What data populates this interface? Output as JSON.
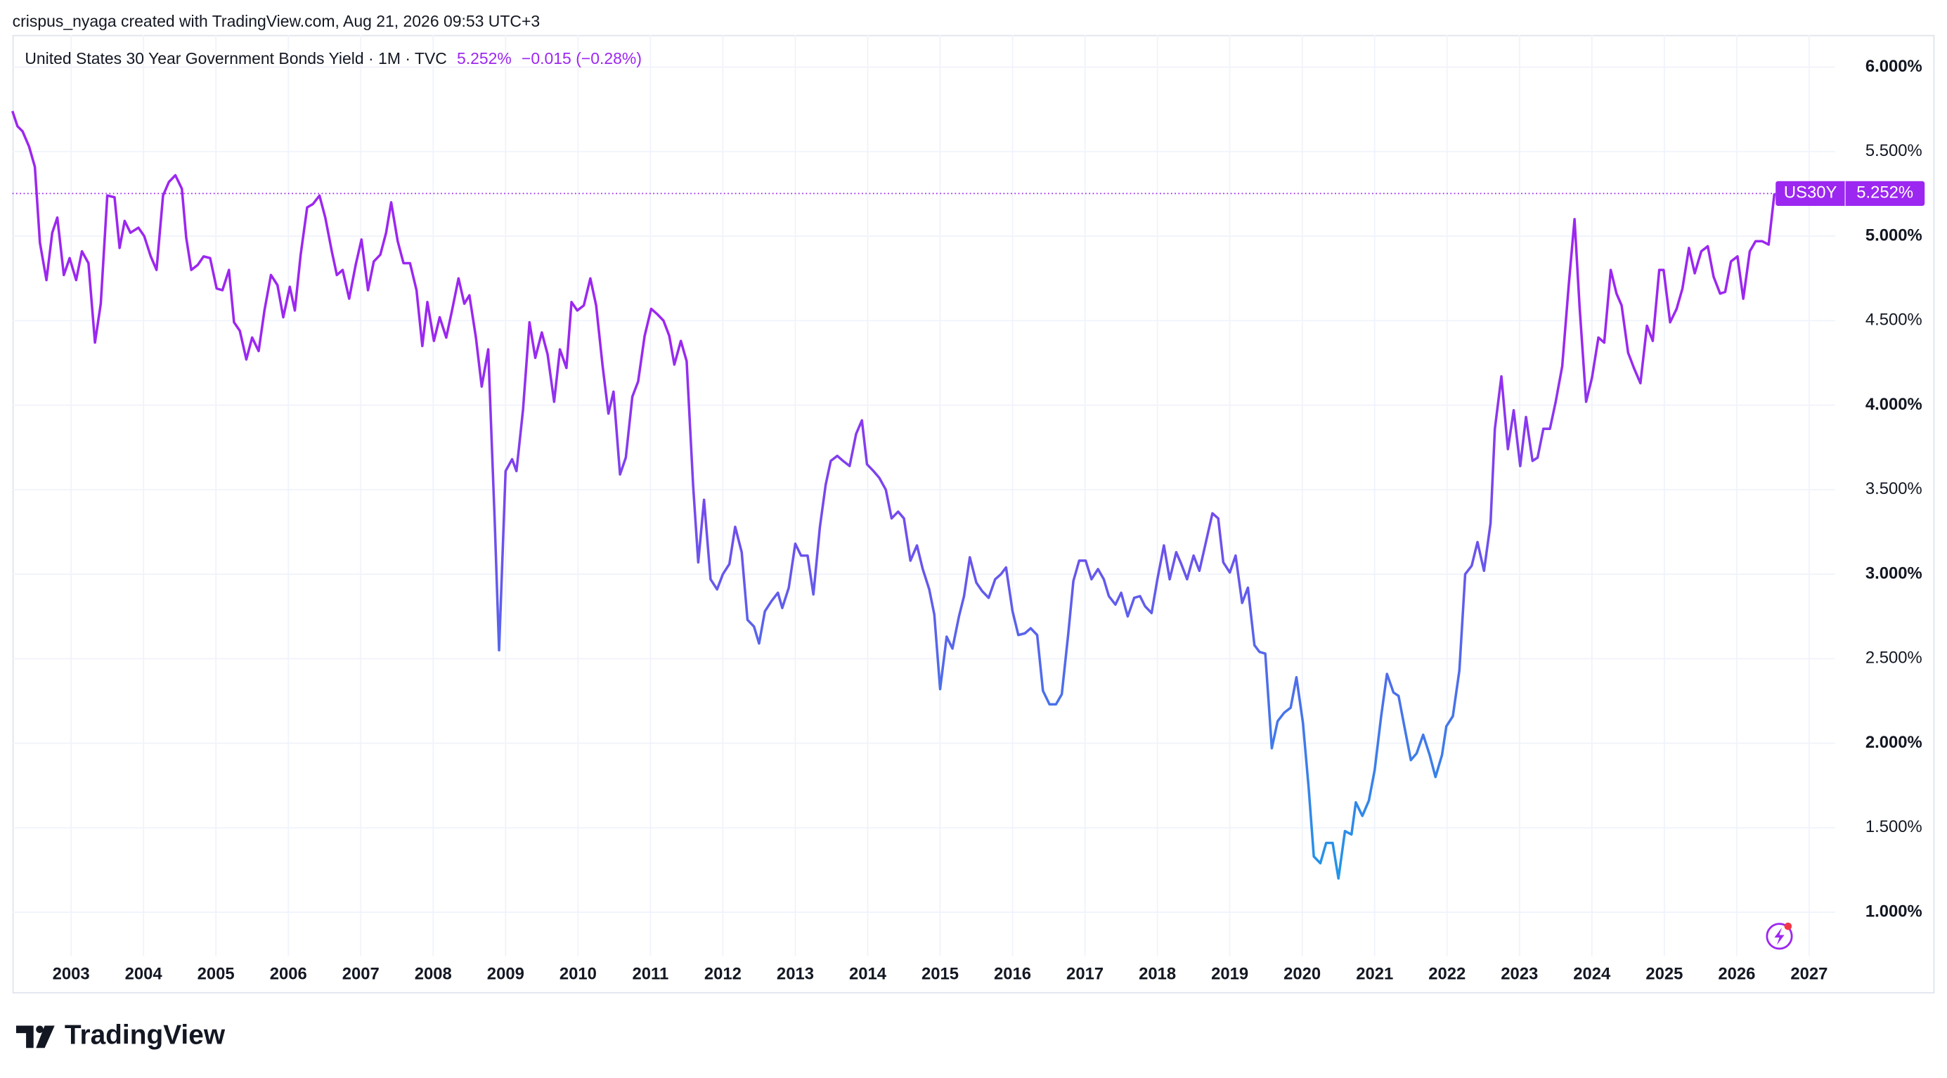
{
  "header": {
    "credit": "crispus_nyaga created with TradingView.com, Aug 21, 2026 09:53 UTC+3"
  },
  "footer": {
    "brand": "TradingView"
  },
  "chart_data": {
    "type": "line",
    "legend": {
      "name": "United States 30 Year Government Bonds Yield · 1M · TVC",
      "last": "5.252%",
      "change": "−0.015 (−0.28%)",
      "color": "#9c27f0"
    },
    "price_label": {
      "symbol": "US30Y",
      "value_label": "5.252%",
      "color": "#9c27f0"
    },
    "gradient": [
      "#9c27f0",
      "#2196e8"
    ],
    "grid": true,
    "xlim": [
      2002.19,
      2027.36
    ],
    "xticks": [
      2003,
      2004,
      2005,
      2006,
      2007,
      2008,
      2009,
      2010,
      2011,
      2012,
      2013,
      2014,
      2015,
      2016,
      2017,
      2018,
      2019,
      2020,
      2021,
      2022,
      2023,
      2024,
      2025,
      2026,
      2027
    ],
    "ylim": [
      0.52,
      6.19
    ],
    "yticks": [
      {
        "value": 1,
        "label": "1.000%"
      },
      {
        "value": 1.5,
        "label": "1.500%"
      },
      {
        "value": 2,
        "label": "2.000%"
      },
      {
        "value": 2.5,
        "label": "2.500%"
      },
      {
        "value": 3,
        "label": "3.000%"
      },
      {
        "value": 3.5,
        "label": "3.500%"
      },
      {
        "value": 4,
        "label": "4.000%"
      },
      {
        "value": 4.5,
        "label": "4.500%"
      },
      {
        "value": 5,
        "label": "5.000%"
      },
      {
        "value": 5.5,
        "label": "5.500%"
      },
      {
        "value": 6,
        "label": "6.000%"
      }
    ],
    "x": [
      2002.19,
      2002.26,
      2002.33,
      2002.42,
      2002.5,
      2002.57,
      2002.66,
      2002.74,
      2002.81,
      2002.9,
      2002.98,
      2003.07,
      2003.15,
      2003.24,
      2003.33,
      2003.41,
      2003.5,
      2003.6,
      2003.67,
      2003.74,
      2003.82,
      2003.93,
      2004.01,
      2004.1,
      2004.18,
      2004.27,
      2004.35,
      2004.44,
      2004.53,
      2004.59,
      2004.66,
      2004.75,
      2004.83,
      2004.92,
      2005.01,
      2005.09,
      2005.18,
      2005.25,
      2005.33,
      2005.42,
      2005.5,
      2005.59,
      2005.67,
      2005.76,
      2005.85,
      2005.93,
      2006.02,
      2006.09,
      2006.17,
      2006.26,
      2006.34,
      2006.43,
      2006.51,
      2006.6,
      2006.67,
      2006.75,
      2006.84,
      2006.93,
      2007.01,
      2007.1,
      2007.18,
      2007.27,
      2007.35,
      2007.42,
      2007.51,
      2007.59,
      2007.68,
      2007.77,
      2007.85,
      2007.92,
      2008.01,
      2008.09,
      2008.18,
      2008.26,
      2008.35,
      2008.43,
      2008.5,
      2008.59,
      2008.67,
      2008.76,
      2008.85,
      2008.91,
      2009.0,
      2009.09,
      2009.15,
      2009.24,
      2009.33,
      2009.41,
      2009.5,
      2009.58,
      2009.67,
      2009.75,
      2009.84,
      2009.91,
      2009.99,
      2010.08,
      2010.17,
      2010.25,
      2010.34,
      2010.42,
      2010.49,
      2010.58,
      2010.66,
      2010.75,
      2010.83,
      2010.92,
      2011.01,
      2011.09,
      2011.18,
      2011.26,
      2011.33,
      2011.42,
      2011.5,
      2011.59,
      2011.66,
      2011.74,
      2011.83,
      2011.92,
      2012.0,
      2012.09,
      2012.17,
      2012.26,
      2012.34,
      2012.43,
      2012.5,
      2012.58,
      2012.67,
      2012.76,
      2012.82,
      2012.91,
      2013.0,
      2013.08,
      2013.17,
      2013.25,
      2013.34,
      2013.42,
      2013.49,
      2013.58,
      2013.66,
      2013.75,
      2013.84,
      2013.92,
      2013.99,
      2014.08,
      2014.16,
      2014.25,
      2014.33,
      2014.42,
      2014.5,
      2014.59,
      2014.68,
      2014.76,
      2014.85,
      2014.92,
      2015.0,
      2015.09,
      2015.17,
      2015.26,
      2015.33,
      2015.41,
      2015.5,
      2015.58,
      2015.67,
      2015.76,
      2015.84,
      2015.91,
      2016.0,
      2016.08,
      2016.17,
      2016.25,
      2016.34,
      2016.42,
      2016.51,
      2016.6,
      2016.68,
      2016.77,
      2016.84,
      2016.92,
      2017.01,
      2017.09,
      2017.18,
      2017.26,
      2017.33,
      2017.42,
      2017.5,
      2017.59,
      2017.68,
      2017.76,
      2017.83,
      2017.92,
      2018.0,
      2018.09,
      2018.17,
      2018.26,
      2018.33,
      2018.41,
      2018.5,
      2018.58,
      2018.67,
      2018.76,
      2018.84,
      2018.91,
      2019.0,
      2019.08,
      2019.17,
      2019.25,
      2019.34,
      2019.41,
      2019.49,
      2019.58,
      2019.66,
      2019.75,
      2019.84,
      2019.92,
      2020.01,
      2020.09,
      2020.16,
      2020.25,
      2020.33,
      2020.42,
      2020.5,
      2020.59,
      2020.68,
      2020.74,
      2020.83,
      2020.92,
      2021.0,
      2021.09,
      2021.17,
      2021.26,
      2021.33,
      2021.41,
      2021.5,
      2021.58,
      2021.67,
      2021.76,
      2021.84,
      2021.93,
      2021.99,
      2022.08,
      2022.17,
      2022.25,
      2022.34,
      2022.42,
      2022.51,
      2022.6,
      2022.66,
      2022.75,
      2022.84,
      2022.92,
      2023.01,
      2023.09,
      2023.18,
      2023.25,
      2023.33,
      2023.42,
      2023.5,
      2023.59,
      2023.68,
      2023.76,
      2023.83,
      2023.92,
      2024.0,
      2024.09,
      2024.17,
      2024.26,
      2024.34,
      2024.41,
      2024.5,
      2024.58,
      2024.67,
      2024.76,
      2024.84,
      2024.93,
      2024.99,
      2025.08,
      2025.17,
      2025.25,
      2025.34,
      2025.42,
      2025.51,
      2025.6,
      2025.68,
      2025.77,
      2025.84,
      2025.92,
      2026.01,
      2026.09,
      2026.18,
      2026.26,
      2026.35,
      2026.44,
      2026.52
    ],
    "series": [
      {
        "name": "United States 30 Year Government Bonds Yield · 1M · TVC",
        "values": [
          5.74,
          5.65,
          5.62,
          5.53,
          5.41,
          4.96,
          4.74,
          5.02,
          5.11,
          4.77,
          4.87,
          4.74,
          4.91,
          4.84,
          4.37,
          4.6,
          5.24,
          5.23,
          4.93,
          5.09,
          5.02,
          5.05,
          5.0,
          4.88,
          4.8,
          5.24,
          5.32,
          5.36,
          5.28,
          4.99,
          4.8,
          4.83,
          4.88,
          4.87,
          4.69,
          4.68,
          4.8,
          4.49,
          4.44,
          4.27,
          4.4,
          4.32,
          4.56,
          4.77,
          4.71,
          4.52,
          4.7,
          4.56,
          4.89,
          5.17,
          5.19,
          5.24,
          5.11,
          4.91,
          4.77,
          4.8,
          4.63,
          4.83,
          4.98,
          4.68,
          4.85,
          4.89,
          5.02,
          5.2,
          4.97,
          4.84,
          4.84,
          4.68,
          4.35,
          4.61,
          4.38,
          4.52,
          4.4,
          4.56,
          4.75,
          4.6,
          4.65,
          4.4,
          4.11,
          4.33,
          3.31,
          2.55,
          3.61,
          3.68,
          3.61,
          3.97,
          4.49,
          4.28,
          4.43,
          4.3,
          4.02,
          4.33,
          4.22,
          4.61,
          4.56,
          4.59,
          4.75,
          4.59,
          4.23,
          3.95,
          4.08,
          3.59,
          3.69,
          4.05,
          4.14,
          4.41,
          4.57,
          4.54,
          4.5,
          4.41,
          4.24,
          4.38,
          4.26,
          3.52,
          3.07,
          3.44,
          2.97,
          2.91,
          3.0,
          3.06,
          3.28,
          3.13,
          2.73,
          2.69,
          2.59,
          2.78,
          2.84,
          2.89,
          2.8,
          2.92,
          3.18,
          3.11,
          3.11,
          2.88,
          3.28,
          3.53,
          3.67,
          3.7,
          3.67,
          3.64,
          3.83,
          3.91,
          3.65,
          3.61,
          3.57,
          3.5,
          3.33,
          3.37,
          3.33,
          3.08,
          3.17,
          3.03,
          2.91,
          2.76,
          2.32,
          2.63,
          2.56,
          2.75,
          2.87,
          3.1,
          2.95,
          2.9,
          2.86,
          2.97,
          3.0,
          3.04,
          2.78,
          2.64,
          2.65,
          2.68,
          2.64,
          2.31,
          2.23,
          2.23,
          2.29,
          2.65,
          2.96,
          3.08,
          3.08,
          2.97,
          3.03,
          2.97,
          2.87,
          2.82,
          2.89,
          2.75,
          2.86,
          2.87,
          2.81,
          2.77,
          2.97,
          3.17,
          2.97,
          3.13,
          3.06,
          2.97,
          3.11,
          3.02,
          3.19,
          3.36,
          3.33,
          3.07,
          3.01,
          3.11,
          2.83,
          2.92,
          2.58,
          2.54,
          2.53,
          1.97,
          2.13,
          2.18,
          2.21,
          2.39,
          2.12,
          1.73,
          1.33,
          1.29,
          1.41,
          1.41,
          1.2,
          1.48,
          1.46,
          1.65,
          1.57,
          1.66,
          1.84,
          2.16,
          2.41,
          2.3,
          2.28,
          2.1,
          1.9,
          1.94,
          2.05,
          1.93,
          1.8,
          1.93,
          2.1,
          2.16,
          2.43,
          3.0,
          3.05,
          3.19,
          3.02,
          3.3,
          3.86,
          4.17,
          3.74,
          3.97,
          3.64,
          3.93,
          3.67,
          3.69,
          3.86,
          3.86,
          4.02,
          4.23,
          4.71,
          5.1,
          4.58,
          4.02,
          4.16,
          4.4,
          4.37,
          4.8,
          4.66,
          4.59,
          4.31,
          4.22,
          4.13,
          4.47,
          4.38,
          4.8,
          4.8,
          4.49,
          4.57,
          4.69,
          4.93,
          4.78,
          4.91,
          4.94,
          4.76,
          4.66,
          4.67,
          4.85,
          4.88,
          4.63,
          4.91,
          4.97,
          4.97,
          4.95,
          5.252
        ]
      }
    ]
  }
}
